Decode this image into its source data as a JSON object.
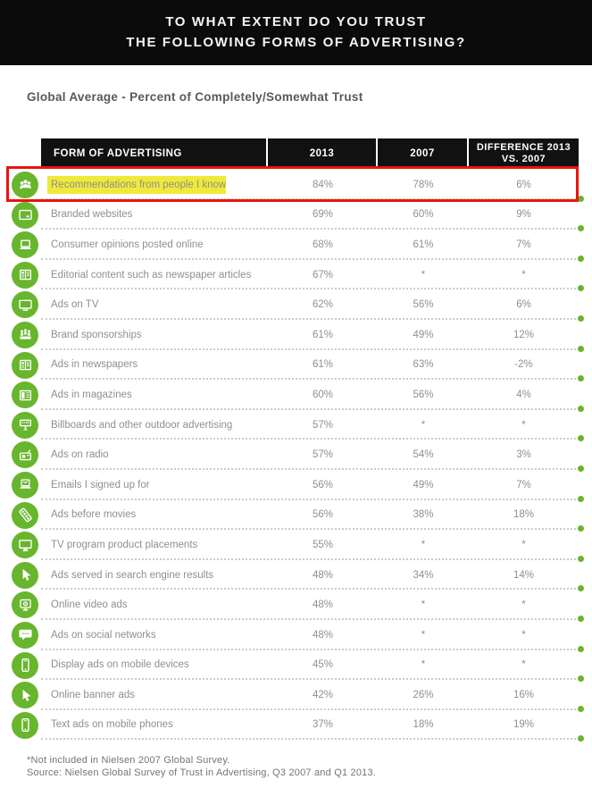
{
  "title": {
    "line1": "TO WHAT EXTENT DO YOU TRUST",
    "line2": "THE FOLLOWING FORMS OF ADVERTISING?"
  },
  "subtitle": "Global Average - Percent of Completely/Somewhat Trust",
  "table": {
    "columns": [
      "FORM OF ADVERTISING",
      "2013",
      "2007",
      "DIFFERENCE 2013 VS. 2007"
    ],
    "rows": [
      {
        "icon": "people-icon",
        "label": "Recommendations from people I know",
        "y2013": "84%",
        "y2007": "78%",
        "diff": "6%",
        "highlighted": true
      },
      {
        "icon": "browser-icon",
        "label": "Branded websites",
        "y2013": "69%",
        "y2007": "60%",
        "diff": "9%"
      },
      {
        "icon": "laptop-icon",
        "label": "Consumer opinions posted online",
        "y2013": "68%",
        "y2007": "61%",
        "diff": "7%"
      },
      {
        "icon": "newspaper-icon",
        "label": "Editorial content such as newspaper articles",
        "y2013": "67%",
        "y2007": "*",
        "diff": "*"
      },
      {
        "icon": "tv-icon",
        "label": "Ads on TV",
        "y2013": "62%",
        "y2007": "56%",
        "diff": "6%"
      },
      {
        "icon": "sponsorship-icon",
        "label": "Brand sponsorships",
        "y2013": "61%",
        "y2007": "49%",
        "diff": "12%"
      },
      {
        "icon": "newspaper-icon",
        "label": "Ads in newspapers",
        "y2013": "61%",
        "y2007": "63%",
        "diff": "-2%"
      },
      {
        "icon": "magazine-icon",
        "label": "Ads in magazines",
        "y2013": "60%",
        "y2007": "56%",
        "diff": "4%"
      },
      {
        "icon": "billboard-icon",
        "label": "Billboards and other outdoor advertising",
        "y2013": "57%",
        "y2007": "*",
        "diff": "*"
      },
      {
        "icon": "radio-icon",
        "label": "Ads on radio",
        "y2013": "57%",
        "y2007": "54%",
        "diff": "3%"
      },
      {
        "icon": "laptop-mail-icon",
        "label": "Emails I signed up for",
        "y2013": "56%",
        "y2007": "49%",
        "diff": "7%"
      },
      {
        "icon": "filmstrip-icon",
        "label": "Ads before movies",
        "y2013": "56%",
        "y2007": "38%",
        "diff": "18%"
      },
      {
        "icon": "monitor-icon",
        "label": "TV program product placements",
        "y2013": "55%",
        "y2007": "*",
        "diff": "*"
      },
      {
        "icon": "cursor-icon",
        "label": "Ads served in search engine results",
        "y2013": "48%",
        "y2007": "34%",
        "diff": "14%"
      },
      {
        "icon": "video-icon",
        "label": "Online video ads",
        "y2013": "48%",
        "y2007": "*",
        "diff": "*"
      },
      {
        "icon": "chat-icon",
        "label": "Ads on social networks",
        "y2013": "48%",
        "y2007": "*",
        "diff": "*"
      },
      {
        "icon": "phone-icon",
        "label": "Display ads on mobile devices",
        "y2013": "45%",
        "y2007": "*",
        "diff": "*"
      },
      {
        "icon": "cursor-icon",
        "label": "Online banner ads",
        "y2013": "42%",
        "y2007": "26%",
        "diff": "16%"
      },
      {
        "icon": "phone-icon",
        "label": "Text ads on mobile phones",
        "y2013": "37%",
        "y2007": "18%",
        "diff": "19%"
      }
    ]
  },
  "footnote": "*Not included in Nielsen 2007 Global Survey.",
  "source": "Source: Nielsen Global Survey of Trust in Advertising, Q3 2007 and Q1 2013.",
  "colors": {
    "accent_green": "#68b52e",
    "highlight_yellow": "#efe93a",
    "highlight_red": "#e8150d",
    "header_bg": "#0b0b0b",
    "text_gray": "#8f8f8f"
  },
  "chart_data": {
    "type": "table",
    "title": "TO WHAT EXTENT DO YOU TRUST THE FOLLOWING FORMS OF ADVERTISING?",
    "subtitle": "Global Average - Percent of Completely/Somewhat Trust",
    "columns": [
      "FORM OF ADVERTISING",
      "2013",
      "2007",
      "DIFFERENCE 2013 VS. 2007"
    ],
    "categories": [
      "Recommendations from people I know",
      "Branded websites",
      "Consumer opinions posted online",
      "Editorial content such as newspaper articles",
      "Ads on TV",
      "Brand sponsorships",
      "Ads in newspapers",
      "Ads in magazines",
      "Billboards and other outdoor advertising",
      "Ads on radio",
      "Emails I signed up for",
      "Ads before movies",
      "TV program product placements",
      "Ads served in search engine results",
      "Online video ads",
      "Ads on social networks",
      "Display ads on mobile devices",
      "Online banner ads",
      "Text ads on mobile phones"
    ],
    "series": [
      {
        "name": "2013",
        "values": [
          84,
          69,
          68,
          67,
          62,
          61,
          61,
          60,
          57,
          57,
          56,
          56,
          55,
          48,
          48,
          48,
          45,
          42,
          37
        ]
      },
      {
        "name": "2007",
        "values": [
          78,
          60,
          61,
          null,
          56,
          49,
          63,
          56,
          null,
          54,
          49,
          38,
          null,
          34,
          null,
          null,
          null,
          26,
          18
        ]
      },
      {
        "name": "DIFFERENCE 2013 VS. 2007",
        "values": [
          6,
          9,
          7,
          null,
          6,
          12,
          -2,
          4,
          null,
          3,
          7,
          18,
          null,
          14,
          null,
          null,
          null,
          16,
          19
        ]
      }
    ],
    "units": "%",
    "missing_marker": "*",
    "highlighted_row": "Recommendations from people I know"
  }
}
